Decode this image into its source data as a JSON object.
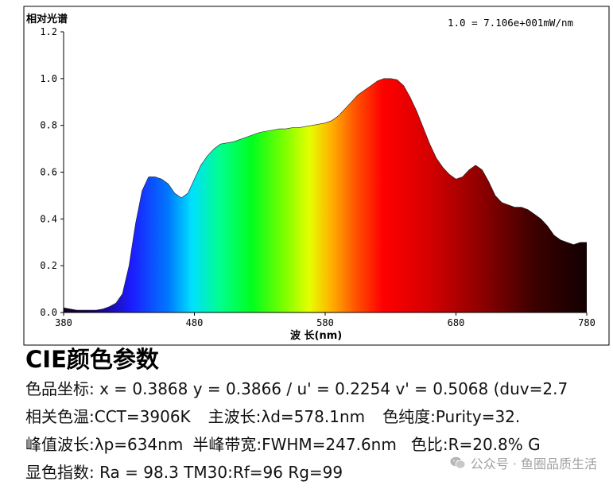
{
  "chart_data": {
    "type": "area",
    "title": "相对光谱",
    "scale_note": "1.0 = 7.106e+001mW/nm",
    "xlabel": "波 长(nm)",
    "ylabel": "",
    "xlim": [
      380,
      780
    ],
    "ylim": [
      0,
      1.2
    ],
    "x_ticks": [
      "380",
      "480",
      "580",
      "680",
      "780"
    ],
    "y_ticks": [
      "0.0",
      "0.2",
      "0.4",
      "0.6",
      "0.8",
      "1.0",
      "1.2"
    ],
    "grid": false,
    "x": [
      380,
      385,
      390,
      395,
      400,
      405,
      410,
      415,
      420,
      425,
      430,
      435,
      440,
      445,
      450,
      455,
      460,
      465,
      470,
      475,
      480,
      485,
      490,
      495,
      500,
      505,
      510,
      515,
      520,
      525,
      530,
      535,
      540,
      545,
      550,
      555,
      560,
      565,
      570,
      575,
      580,
      585,
      590,
      595,
      600,
      605,
      610,
      615,
      620,
      625,
      630,
      635,
      640,
      645,
      650,
      655,
      660,
      665,
      670,
      675,
      680,
      685,
      690,
      695,
      700,
      705,
      710,
      715,
      720,
      725,
      730,
      735,
      740,
      745,
      750,
      755,
      760,
      765,
      770,
      775,
      780
    ],
    "y": [
      0.02,
      0.015,
      0.01,
      0.01,
      0.01,
      0.01,
      0.015,
      0.025,
      0.04,
      0.08,
      0.2,
      0.38,
      0.52,
      0.58,
      0.58,
      0.57,
      0.55,
      0.51,
      0.49,
      0.51,
      0.57,
      0.63,
      0.67,
      0.7,
      0.72,
      0.725,
      0.73,
      0.74,
      0.75,
      0.76,
      0.77,
      0.775,
      0.78,
      0.785,
      0.785,
      0.79,
      0.79,
      0.795,
      0.8,
      0.805,
      0.81,
      0.82,
      0.84,
      0.87,
      0.9,
      0.93,
      0.95,
      0.97,
      0.99,
      1.0,
      1.0,
      0.995,
      0.97,
      0.92,
      0.86,
      0.79,
      0.72,
      0.66,
      0.62,
      0.59,
      0.57,
      0.58,
      0.61,
      0.63,
      0.61,
      0.56,
      0.5,
      0.47,
      0.46,
      0.45,
      0.45,
      0.44,
      0.42,
      0.4,
      0.37,
      0.33,
      0.31,
      0.3,
      0.29,
      0.3,
      0.3
    ]
  },
  "info": {
    "title": "CIE颜色参数",
    "line1": "色品坐标: x = 0.3868 y = 0.3866 / u' = 0.2254 v' = 0.5068 (duv=2.7",
    "line2_a": "相关色温:CCT=3906K",
    "line2_b": "主波长:λd=578.1nm",
    "line2_c": "色纯度:Purity=32.",
    "line3_a": "峰值波长:λp=634nm",
    "line3_b": "半峰带宽:FWHM=247.6nm",
    "line3_c": "色比:R=20.8% G",
    "line4": "显色指数: Ra = 98.3 TM30:Rf=96 Rg=99"
  },
  "watermark": {
    "icon": "wechat-icon",
    "text": "公众号 · 鱼圈品质生活"
  }
}
